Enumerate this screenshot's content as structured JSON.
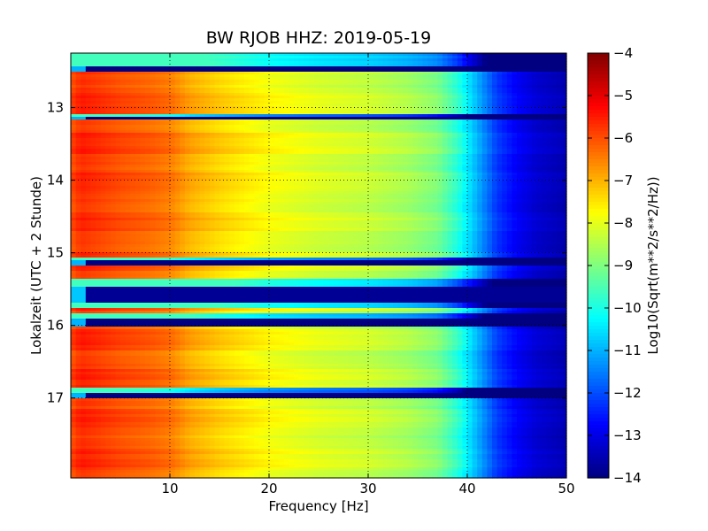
{
  "chart_data": {
    "type": "heatmap",
    "title": "BW RJOB HHZ: 2019-05-19",
    "xlabel": "Frequency [Hz]",
    "ylabel": "Lokalzeit (UTC + 2 Stunde)",
    "colorbar_label": "Log10(Sqrt(m**2/s**2/Hz))",
    "colormap": "jet",
    "xlim": [
      0,
      50
    ],
    "ylim": [
      12.25,
      18.1
    ],
    "y_inverted": true,
    "clim": [
      -14,
      -4
    ],
    "grid": true,
    "x_ticks": [
      10,
      20,
      30,
      40,
      50
    ],
    "x_tick_labels": [
      "10",
      "20",
      "30",
      "40",
      "50"
    ],
    "y_ticks": [
      13,
      14,
      15,
      16,
      17
    ],
    "y_tick_labels": [
      "13",
      "14",
      "15",
      "16",
      "17"
    ],
    "colorbar_ticks": [
      -4,
      -5,
      -6,
      -7,
      -8,
      -9,
      -10,
      -11,
      -12,
      -13,
      -14
    ],
    "colorbar_tick_labels": [
      "−4",
      "−5",
      "−6",
      "−7",
      "−8",
      "−9",
      "−10",
      "−11",
      "−12",
      "−13",
      "−14"
    ],
    "spectrum_profile": {
      "frequency_hz": [
        0,
        1,
        3,
        5,
        8,
        10,
        12,
        15,
        20,
        25,
        30,
        34,
        37,
        39,
        41,
        43,
        45,
        47,
        50
      ],
      "log10_amplitude": [
        -6.0,
        -5.6,
        -5.8,
        -6.0,
        -6.2,
        -6.4,
        -6.9,
        -7.3,
        -7.8,
        -8.1,
        -8.3,
        -8.6,
        -9.0,
        -9.8,
        -11.0,
        -12.2,
        -12.8,
        -13.2,
        -13.5
      ]
    },
    "gap_bands": [
      {
        "t0": 12.42,
        "t1": 12.52,
        "level": -14
      },
      {
        "t0": 13.12,
        "t1": 13.18,
        "level": -14
      },
      {
        "t0": 15.1,
        "t1": 15.17,
        "level": -14
      },
      {
        "t0": 15.45,
        "t1": 15.7,
        "level": -13.8
      },
      {
        "t0": 15.9,
        "t1": 16.03,
        "level": -14
      },
      {
        "t0": 16.92,
        "t1": 17.0,
        "level": -14
      }
    ],
    "quiet_bands": [
      {
        "t0": 12.25,
        "t1": 12.42,
        "offset": -2.5
      },
      {
        "t0": 13.09,
        "t1": 13.12,
        "offset": -3.5
      },
      {
        "t0": 15.06,
        "t1": 15.1,
        "offset": -3.5
      },
      {
        "t0": 15.35,
        "t1": 15.45,
        "offset": -2.0
      },
      {
        "t0": 15.7,
        "t1": 15.75,
        "offset": -2.5
      },
      {
        "t0": 15.82,
        "t1": 15.9,
        "offset": -2.5
      },
      {
        "t0": 16.87,
        "t1": 16.92,
        "offset": -3.5
      }
    ]
  }
}
